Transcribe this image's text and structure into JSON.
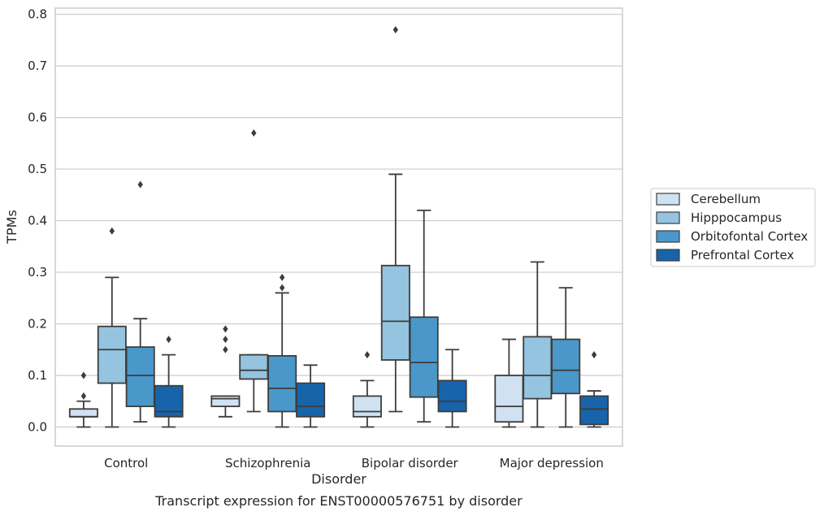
{
  "chart_data": {
    "type": "boxplot",
    "caption": "Transcript expression for ENST00000576751 by disorder",
    "xlabel": "Disorder",
    "ylabel": "TPMs",
    "ylim": [
      -0.037,
      0.812
    ],
    "yticks": [
      0.0,
      0.1,
      0.2,
      0.3,
      0.4,
      0.5,
      0.6,
      0.7,
      0.8
    ],
    "ytick_labels": [
      "0.0",
      "0.1",
      "0.2",
      "0.3",
      "0.4",
      "0.5",
      "0.6",
      "0.7",
      "0.8"
    ],
    "grid": "horizontal",
    "legend_position": "right",
    "categories": [
      "Control",
      "Schizophrenia",
      "Bipolar disorder",
      "Major depression"
    ],
    "series": [
      {
        "name": "Cerebellum",
        "color": "#d0e1f2",
        "boxes": [
          {
            "q1": 0.02,
            "median": 0.02,
            "q3": 0.035,
            "whisker_low": 0.0,
            "whisker_high": 0.05,
            "outliers": [
              0.06,
              0.1
            ]
          },
          {
            "q1": 0.04,
            "median": 0.055,
            "q3": 0.06,
            "whisker_low": 0.02,
            "whisker_high": 0.06,
            "outliers": [
              0.15,
              0.17,
              0.19
            ]
          },
          {
            "q1": 0.02,
            "median": 0.03,
            "q3": 0.06,
            "whisker_low": 0.0,
            "whisker_high": 0.09,
            "outliers": [
              0.14
            ]
          },
          {
            "q1": 0.01,
            "median": 0.04,
            "q3": 0.1,
            "whisker_low": 0.0,
            "whisker_high": 0.17,
            "outliers": []
          }
        ]
      },
      {
        "name": "Hipppocampus",
        "color": "#94c4df",
        "boxes": [
          {
            "q1": 0.085,
            "median": 0.15,
            "q3": 0.195,
            "whisker_low": 0.0,
            "whisker_high": 0.29,
            "outliers": [
              0.38
            ]
          },
          {
            "q1": 0.093,
            "median": 0.11,
            "q3": 0.14,
            "whisker_low": 0.03,
            "whisker_high": 0.14,
            "outliers": [
              0.57
            ]
          },
          {
            "q1": 0.13,
            "median": 0.205,
            "q3": 0.313,
            "whisker_low": 0.03,
            "whisker_high": 0.49,
            "outliers": [
              0.77
            ]
          },
          {
            "q1": 0.055,
            "median": 0.1,
            "q3": 0.175,
            "whisker_low": 0.0,
            "whisker_high": 0.32,
            "outliers": []
          }
        ]
      },
      {
        "name": "Orbitofontal Cortex",
        "color": "#4a98c9",
        "boxes": [
          {
            "q1": 0.04,
            "median": 0.1,
            "q3": 0.155,
            "whisker_low": 0.01,
            "whisker_high": 0.21,
            "outliers": [
              0.47
            ]
          },
          {
            "q1": 0.03,
            "median": 0.075,
            "q3": 0.138,
            "whisker_low": 0.0,
            "whisker_high": 0.26,
            "outliers": [
              0.27,
              0.29
            ]
          },
          {
            "q1": 0.058,
            "median": 0.125,
            "q3": 0.213,
            "whisker_low": 0.01,
            "whisker_high": 0.42,
            "outliers": []
          },
          {
            "q1": 0.065,
            "median": 0.11,
            "q3": 0.17,
            "whisker_low": 0.0,
            "whisker_high": 0.27,
            "outliers": []
          }
        ]
      },
      {
        "name": "Prefrontal Cortex",
        "color": "#1764ab",
        "boxes": [
          {
            "q1": 0.02,
            "median": 0.03,
            "q3": 0.08,
            "whisker_low": 0.0,
            "whisker_high": 0.14,
            "outliers": [
              0.17
            ]
          },
          {
            "q1": 0.02,
            "median": 0.04,
            "q3": 0.085,
            "whisker_low": 0.0,
            "whisker_high": 0.12,
            "outliers": []
          },
          {
            "q1": 0.03,
            "median": 0.05,
            "q3": 0.09,
            "whisker_low": 0.0,
            "whisker_high": 0.15,
            "outliers": []
          },
          {
            "q1": 0.005,
            "median": 0.035,
            "q3": 0.06,
            "whisker_low": 0.0,
            "whisker_high": 0.07,
            "outliers": [
              0.14
            ]
          }
        ]
      }
    ]
  }
}
